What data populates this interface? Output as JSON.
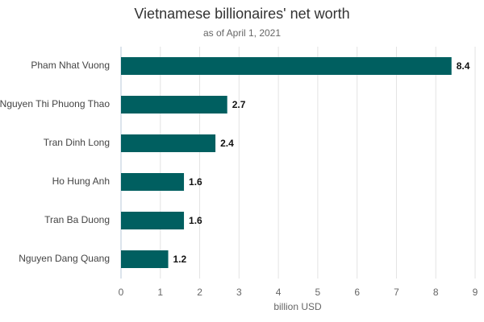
{
  "chart_data": {
    "type": "bar",
    "orientation": "horizontal",
    "title": "Vietnamese billionaires' net worth",
    "subtitle": "as of April 1, 2021",
    "x_label": "billion USD",
    "categories": [
      "Pham Nhat Vuong",
      "Nguyen Thi Phuong Thao",
      "Tran Dinh Long",
      "Ho Hung Anh",
      "Tran Ba Duong",
      "Nguyen Dang Quang"
    ],
    "values": [
      8.4,
      2.7,
      2.4,
      1.6,
      1.6,
      1.2
    ],
    "color": "#005f60",
    "xlim": [
      0,
      9
    ],
    "xticks": [
      0,
      1,
      2,
      3,
      4,
      5,
      6,
      7,
      8,
      9
    ],
    "grid": true
  }
}
